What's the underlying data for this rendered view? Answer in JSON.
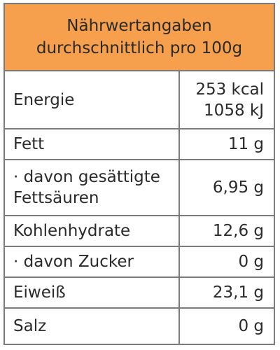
{
  "header": {
    "title_line1": "Nährwertangaben",
    "title_line2": "durchschnittlich pro 100g"
  },
  "rows": [
    {
      "label": "Energie",
      "value_line1": "253 kcal",
      "value_line2": "1058 kJ"
    },
    {
      "label": "Fett",
      "value": "11 g"
    },
    {
      "label_line1": "· davon gesättigte",
      "label_line2": "Fettsäuren",
      "value": "6,95 g"
    },
    {
      "label": "Kohlenhydrate",
      "value": "12,6 g"
    },
    {
      "label": "· davon Zucker",
      "value": "0 g"
    },
    {
      "label": "Eiweiß",
      "value": "23,1 g"
    },
    {
      "label": "Salz",
      "value": "0 g"
    }
  ],
  "colors": {
    "header_background": "#f6a04e",
    "border": "#7a7a7a",
    "text": "#2a2a2a"
  }
}
